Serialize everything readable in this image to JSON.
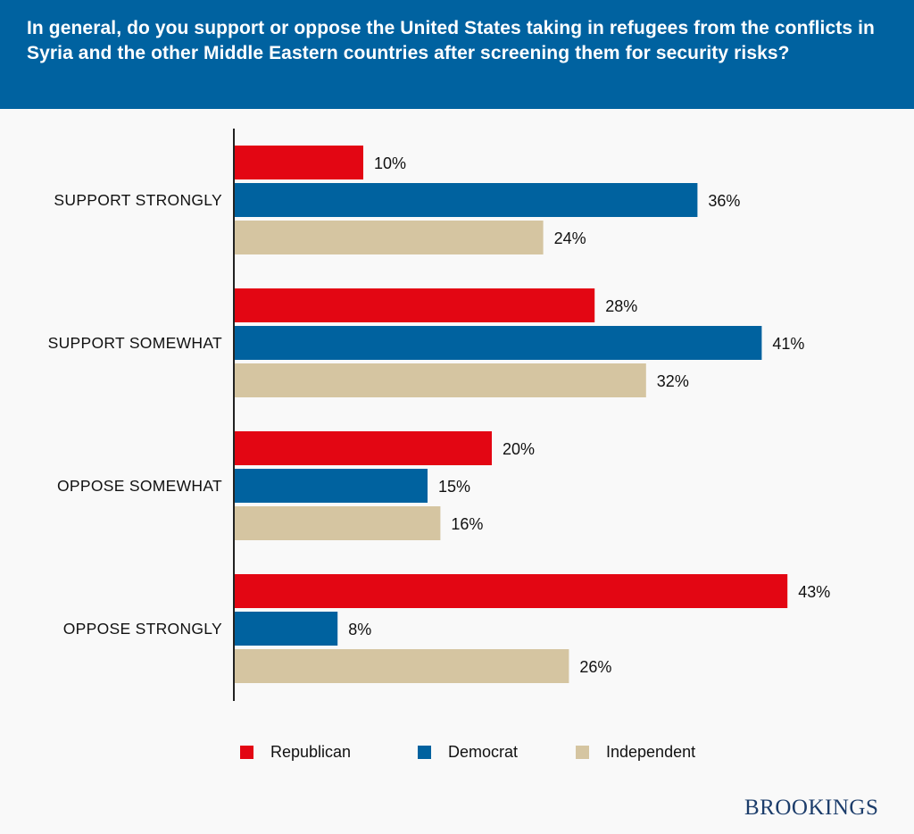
{
  "header": {
    "title": "In general, do you support or oppose the United States taking in refugees from the conflicts in Syria and the other Middle Eastern countries after screening them for security risks?"
  },
  "chart_data": {
    "type": "bar",
    "orientation": "horizontal",
    "title": "In general, do you support or oppose the United States taking in refugees from the conflicts in Syria and the other Middle Eastern countries after screening them for security risks?",
    "xlabel": "",
    "ylabel": "",
    "unit": "%",
    "grid": false,
    "legend_position": "bottom",
    "categories": [
      "SUPPORT STRONGLY",
      "SUPPORT SOMEWHAT",
      "OPPOSE SOMEWHAT",
      "OPPOSE STRONGLY"
    ],
    "series": [
      {
        "name": "Republican",
        "color": "#e30613",
        "values": [
          10,
          28,
          20,
          43
        ]
      },
      {
        "name": "Democrat",
        "color": "#00629f",
        "values": [
          36,
          41,
          15,
          8
        ]
      },
      {
        "name": "Independent",
        "color": "#d5c5a1",
        "values": [
          24,
          32,
          16,
          26
        ]
      }
    ],
    "xlim": [
      0,
      50
    ]
  },
  "legend": {
    "items": [
      {
        "label": "Republican",
        "color": "#e30613"
      },
      {
        "label": "Democrat",
        "color": "#00629f"
      },
      {
        "label": "Independent",
        "color": "#d5c5a1"
      }
    ]
  },
  "branding": {
    "logo_text": "BROOKINGS"
  }
}
